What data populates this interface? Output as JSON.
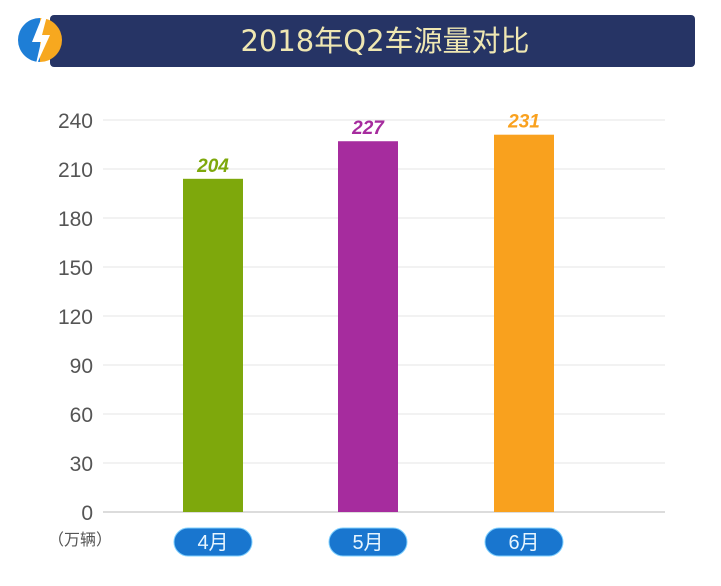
{
  "chart_data": {
    "type": "bar",
    "title": "2018年Q2车源量对比",
    "categories": [
      "4月",
      "5月",
      "6月"
    ],
    "values": [
      204,
      227,
      231
    ],
    "ylabel": "（万辆）",
    "xlabel": "",
    "ylim": [
      0,
      240
    ],
    "yticks": [
      0,
      30,
      60,
      90,
      120,
      150,
      180,
      210,
      240
    ],
    "grid": true,
    "colors": [
      "#7ea80c",
      "#a62c9e",
      "#f9a11e"
    ],
    "header_color": "#263465",
    "category_pill_color": "#1976cf"
  },
  "header": {
    "icon": "lightning-bolt-icon"
  }
}
